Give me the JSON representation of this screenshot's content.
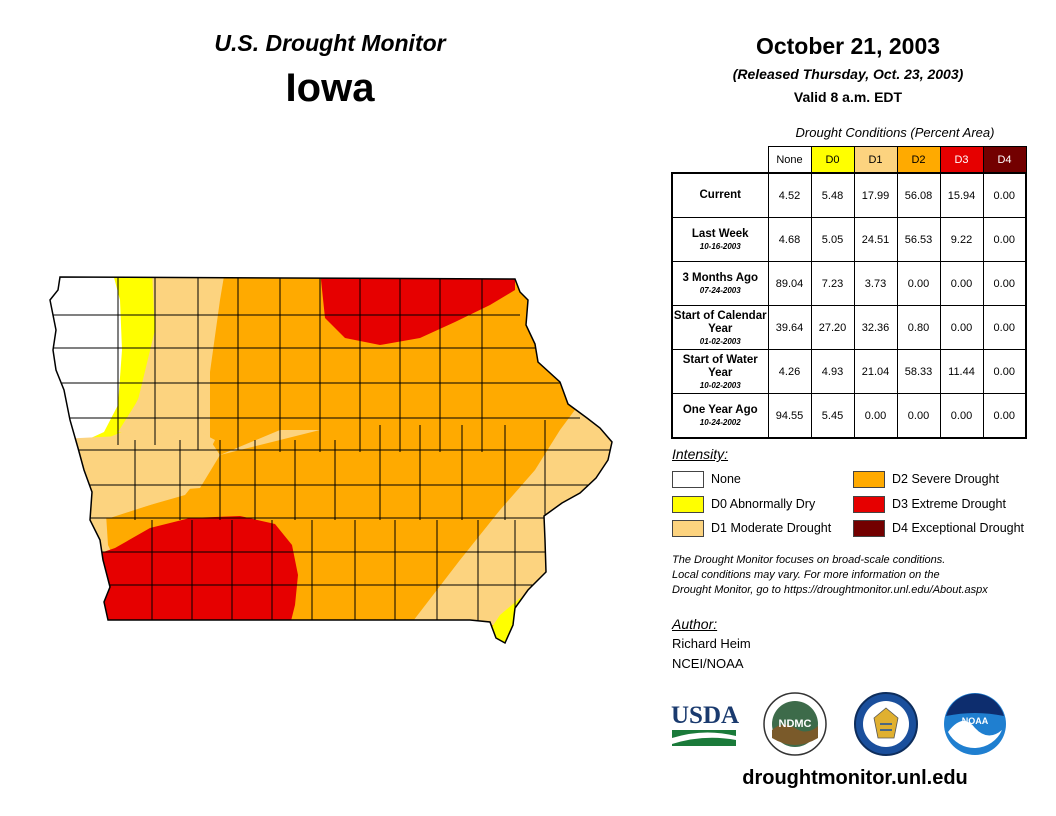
{
  "header": {
    "title_line1": "U.S. Drought Monitor",
    "title_line2": "Iowa",
    "date": "October 21, 2003",
    "released": "(Released Thursday, Oct. 23, 2003)",
    "valid": "Valid 8 a.m. EDT"
  },
  "table": {
    "caption": "Drought Conditions (Percent Area)",
    "columns": [
      "None",
      "D0",
      "D1",
      "D2",
      "D3",
      "D4"
    ],
    "column_colors": [
      "#ffffff",
      "#ffff00",
      "#fcd37f",
      "#ffaa00",
      "#e60000",
      "#730000"
    ],
    "rows": [
      {
        "label": "Current",
        "date": "",
        "values": [
          "4.52",
          "5.48",
          "17.99",
          "56.08",
          "15.94",
          "0.00"
        ]
      },
      {
        "label": "Last Week",
        "date": "10-16-2003",
        "values": [
          "4.68",
          "5.05",
          "24.51",
          "56.53",
          "9.22",
          "0.00"
        ]
      },
      {
        "label": "3 Months Ago",
        "date": "07-24-2003",
        "values": [
          "89.04",
          "7.23",
          "3.73",
          "0.00",
          "0.00",
          "0.00"
        ]
      },
      {
        "label": "Start of Calendar Year",
        "date": "01-02-2003",
        "values": [
          "39.64",
          "27.20",
          "32.36",
          "0.80",
          "0.00",
          "0.00"
        ]
      },
      {
        "label": "Start of Water Year",
        "date": "10-02-2003",
        "values": [
          "4.26",
          "4.93",
          "21.04",
          "58.33",
          "11.44",
          "0.00"
        ]
      },
      {
        "label": "One Year Ago",
        "date": "10-24-2002",
        "values": [
          "94.55",
          "5.45",
          "0.00",
          "0.00",
          "0.00",
          "0.00"
        ]
      }
    ]
  },
  "legend": {
    "title": "Intensity:",
    "items": [
      {
        "label": "None",
        "color": "#ffffff"
      },
      {
        "label": "D0 Abnormally Dry",
        "color": "#ffff00"
      },
      {
        "label": "D1 Moderate Drought",
        "color": "#fcd37f"
      },
      {
        "label": "D2 Severe Drought",
        "color": "#ffaa00"
      },
      {
        "label": "D3 Extreme Drought",
        "color": "#e60000"
      },
      {
        "label": "D4 Exceptional Drought",
        "color": "#730000"
      }
    ]
  },
  "note": {
    "line1": "The Drought Monitor focuses on broad-scale conditions.",
    "line2": "Local conditions may vary. For more information on the",
    "line3": "Drought Monitor, go to https://droughtmonitor.unl.edu/About.aspx"
  },
  "author": {
    "title": "Author:",
    "name": "Richard Heim",
    "org": "NCEI/NOAA"
  },
  "logos": {
    "usda": "USDA",
    "ndmc": "NDMC",
    "noaa": "NOAA"
  },
  "website": "droughtmonitor.unl.edu"
}
